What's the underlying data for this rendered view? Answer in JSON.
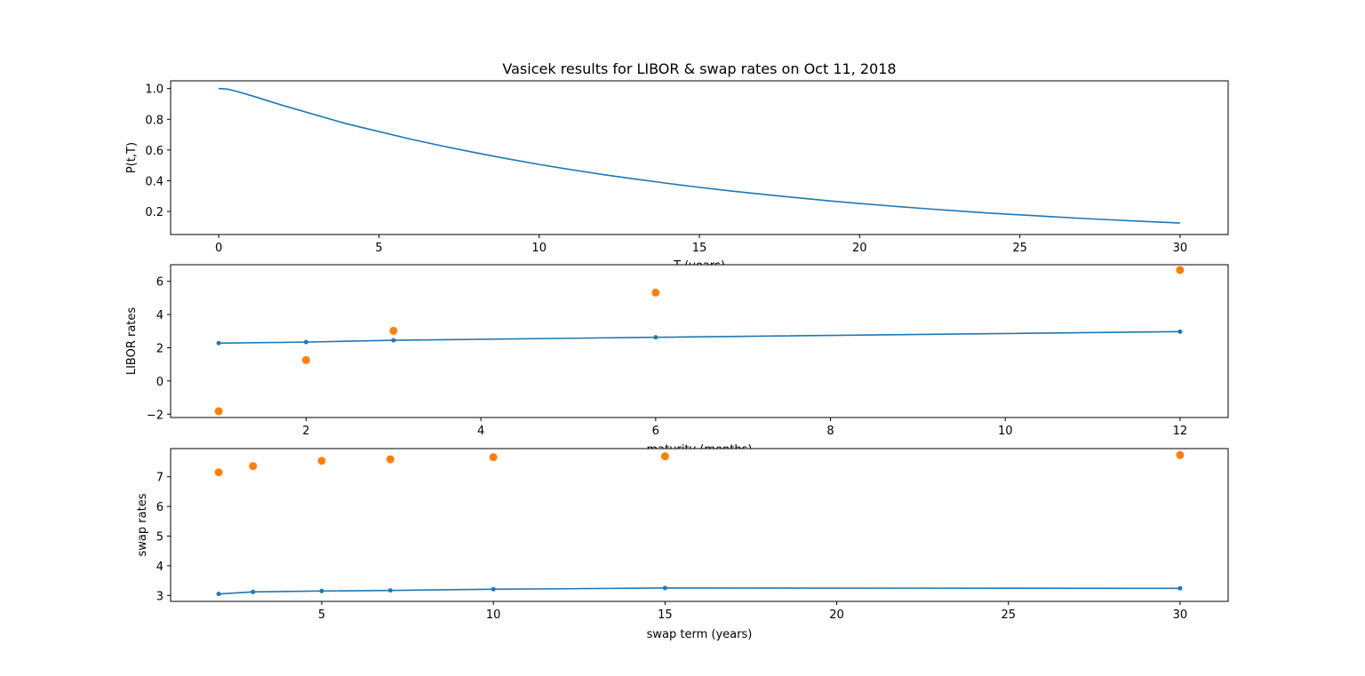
{
  "figure": {
    "title": "Vasicek results for LIBOR & swap rates on Oct 11, 2018"
  },
  "colors": {
    "model": "#1f77b4",
    "market": "#ff7f0e",
    "axes": "#000000",
    "background": "#ffffff"
  },
  "chart_data": [
    {
      "type": "line",
      "xlabel": "T (years)",
      "ylabel": "P(t,T)",
      "xlim": [
        -1.5,
        31.5
      ],
      "ylim": [
        0.05,
        1.05
      ],
      "xticks": [
        0,
        5,
        10,
        15,
        20,
        25,
        30
      ],
      "yticks": [
        0.2,
        0.4,
        0.6,
        0.8,
        1.0
      ],
      "ytick_labels": [
        "0.2",
        "0.4",
        "0.6",
        "0.8",
        "1.0"
      ],
      "grid": false,
      "series": [
        {
          "style": "line",
          "x": [
            0,
            0.25,
            0.5,
            1,
            2,
            3,
            4,
            5,
            6,
            7,
            8,
            9,
            10,
            11,
            12,
            13,
            14,
            15,
            16,
            17,
            18,
            19,
            20,
            21,
            22,
            23,
            24,
            25,
            26,
            27,
            28,
            29,
            30
          ],
          "y": [
            1.0,
            0.997,
            0.985,
            0.955,
            0.89,
            0.83,
            0.77,
            0.72,
            0.67,
            0.625,
            0.583,
            0.543,
            0.506,
            0.472,
            0.44,
            0.411,
            0.383,
            0.357,
            0.333,
            0.311,
            0.29,
            0.27,
            0.252,
            0.235,
            0.219,
            0.204,
            0.19,
            0.178,
            0.166,
            0.154,
            0.144,
            0.134,
            0.125
          ]
        }
      ]
    },
    {
      "type": "line",
      "xlabel": "maturity (months)",
      "ylabel": "LIBOR rates",
      "xlim": [
        0.45,
        12.55
      ],
      "ylim": [
        -2.2,
        7.0
      ],
      "xticks": [
        2,
        4,
        6,
        8,
        10,
        12
      ],
      "yticks": [
        -2,
        0,
        2,
        4,
        6
      ],
      "ytick_labels": [
        "−2",
        "0",
        "2",
        "4",
        "6"
      ],
      "grid": false,
      "series": [
        {
          "style": "line-dots",
          "x": [
            1,
            2,
            3,
            6,
            12
          ],
          "y": [
            2.28,
            2.34,
            2.45,
            2.63,
            2.97
          ]
        },
        {
          "style": "points",
          "x": [
            1,
            2,
            3,
            6,
            12
          ],
          "y": [
            -1.82,
            1.26,
            3.02,
            5.32,
            6.68
          ]
        }
      ]
    },
    {
      "type": "line",
      "xlabel": "swap term (years)",
      "ylabel": "swap rates",
      "xlim": [
        0.6,
        31.4
      ],
      "ylim": [
        2.8,
        7.95
      ],
      "xticks": [
        5,
        10,
        15,
        20,
        25,
        30
      ],
      "yticks": [
        3,
        4,
        5,
        6,
        7
      ],
      "ytick_labels": [
        "3",
        "4",
        "5",
        "6",
        "7"
      ],
      "grid": false,
      "series": [
        {
          "style": "line-dots",
          "x": [
            2,
            3,
            5,
            7,
            10,
            15,
            30
          ],
          "y": [
            3.05,
            3.12,
            3.15,
            3.17,
            3.21,
            3.25,
            3.24
          ]
        },
        {
          "style": "points",
          "x": [
            2,
            3,
            5,
            7,
            10,
            15,
            30
          ],
          "y": [
            7.15,
            7.36,
            7.54,
            7.59,
            7.66,
            7.69,
            7.73
          ]
        }
      ]
    }
  ]
}
